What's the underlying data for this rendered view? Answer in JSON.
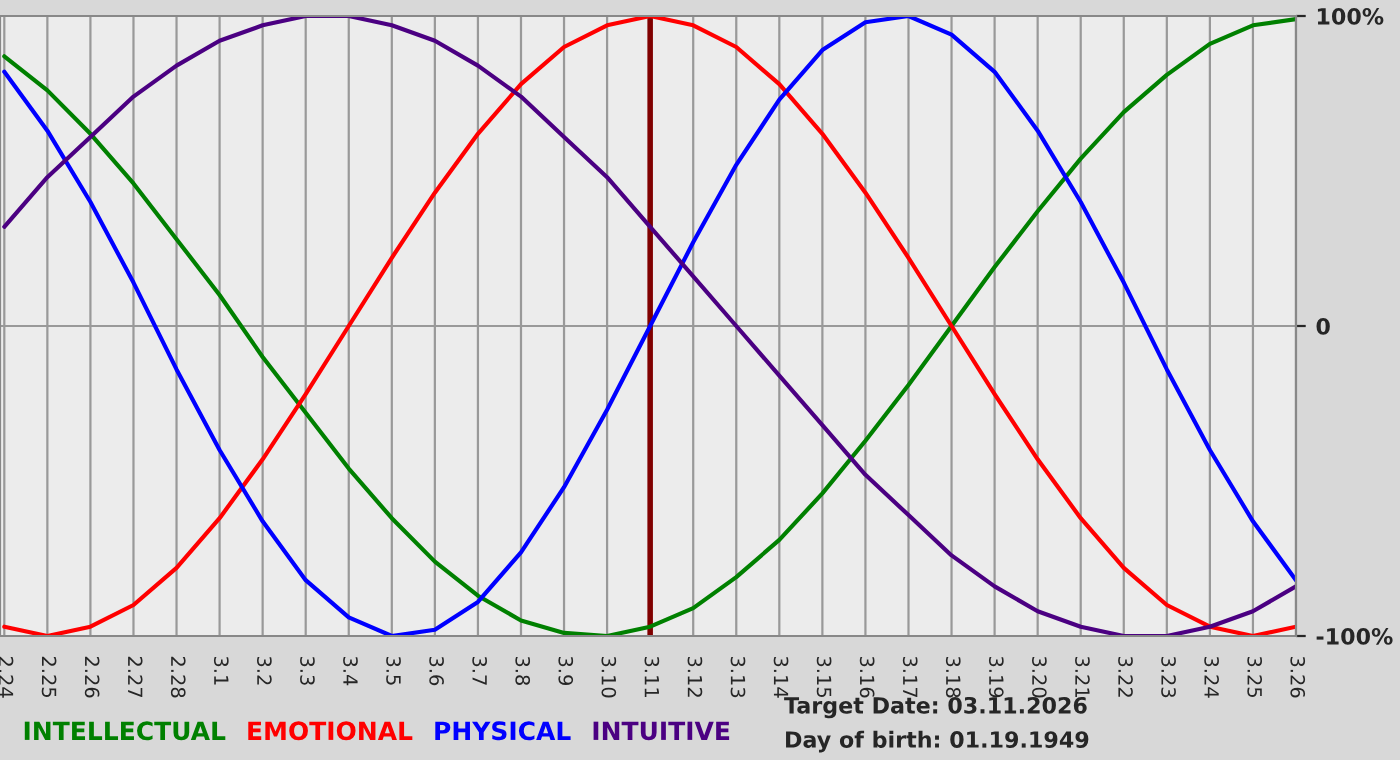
{
  "chart_data": {
    "type": "line",
    "categories": [
      "2.24",
      "2.25",
      "2.26",
      "2.27",
      "2.28",
      "3.1",
      "3.2",
      "3.3",
      "3.4",
      "3.5",
      "3.6",
      "3.7",
      "3.8",
      "3.9",
      "3.10",
      "3.11",
      "3.12",
      "3.13",
      "3.14",
      "3.15",
      "3.16",
      "3.17",
      "3.18",
      "3.19",
      "3.20",
      "3.21",
      "3.22",
      "3.23",
      "3.24",
      "3.25",
      "3.26"
    ],
    "series": [
      {
        "name": "INTELLECTUAL",
        "color": "#008000",
        "values": [
          87,
          76,
          62,
          46,
          28,
          10,
          -10,
          -28,
          -46,
          -62,
          -76,
          -87,
          -95,
          -99,
          -100,
          -97,
          -91,
          -81,
          -69,
          -54,
          -37,
          -19,
          0,
          19,
          37,
          54,
          69,
          81,
          91,
          97,
          99
        ]
      },
      {
        "name": "EMOTIONAL",
        "color": "#ff0000",
        "values": [
          -97,
          -100,
          -97,
          -90,
          -78,
          -62,
          -43,
          -22,
          0,
          22,
          43,
          62,
          78,
          90,
          97,
          100,
          97,
          90,
          78,
          62,
          43,
          22,
          0,
          -22,
          -43,
          -62,
          -78,
          -90,
          -97,
          -100,
          -97
        ]
      },
      {
        "name": "PHYSICAL",
        "color": "#0000ff",
        "values": [
          82,
          63,
          40,
          14,
          -14,
          -40,
          -63,
          -82,
          -94,
          -100,
          -98,
          -89,
          -73,
          -52,
          -27,
          0,
          27,
          52,
          73,
          89,
          98,
          100,
          94,
          82,
          63,
          40,
          14,
          -14,
          -40,
          -63,
          -82
        ]
      },
      {
        "name": "INTUITIVE",
        "color": "#4b0082",
        "values": [
          32,
          48,
          61,
          74,
          84,
          92,
          97,
          100,
          100,
          97,
          92,
          84,
          74,
          61,
          48,
          32,
          16,
          0,
          -16,
          -32,
          -48,
          -61,
          -74,
          -84,
          -92,
          -97,
          -100,
          -100,
          -97,
          -92,
          -84
        ]
      }
    ],
    "ylim": [
      -100,
      100
    ],
    "yticks": [
      {
        "value": 100,
        "label": "100%"
      },
      0,
      {
        "value": -100,
        "label": "-100%"
      }
    ],
    "ref_lines": [
      {
        "axis": "x",
        "value": "3.11",
        "label": null,
        "color": "#800000"
      }
    ],
    "annotations": [
      "Target Date: 03.11.2026",
      "Day of birth: 01.19.1949"
    ],
    "grid": true,
    "legend": "bottom",
    "marker": "none",
    "line_style": "solid"
  }
}
